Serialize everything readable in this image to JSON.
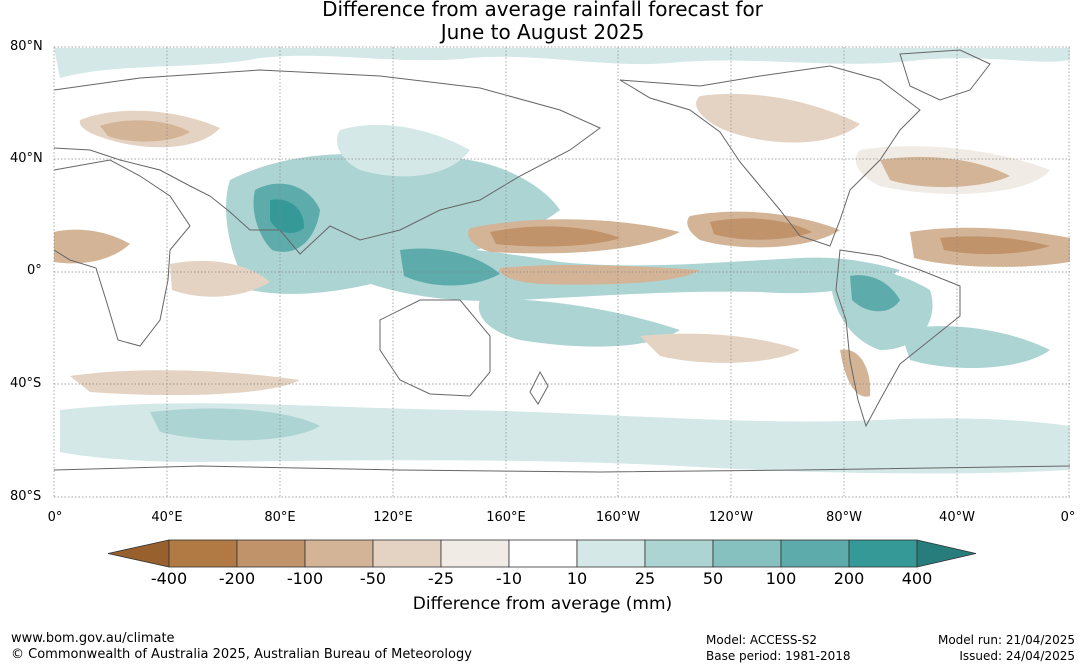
{
  "title_line1": "Difference from average rainfall forecast for",
  "title_line2": "June to August 2025",
  "lat_labels": [
    "80°N",
    "40°N",
    "0°",
    "40°S",
    "80°S"
  ],
  "lon_labels": [
    "0°",
    "40°E",
    "80°E",
    "120°E",
    "160°E",
    "160°W",
    "120°W",
    "80°W",
    "40°W",
    "0°"
  ],
  "colorbar": {
    "labels": [
      "-400",
      "-200",
      "-100",
      "-50",
      "-25",
      "-10",
      "10",
      "25",
      "50",
      "100",
      "200",
      "400"
    ],
    "colors": [
      "#97602c",
      "#b17a44",
      "#c0936a",
      "#d3b496",
      "#e4d3c3",
      "#f1ebe6",
      "#ffffff",
      "#d4e8e7",
      "#acd4d3",
      "#86c0bf",
      "#5dacab",
      "#359997",
      "#277d7b"
    ],
    "title": "Difference from average (mm)"
  },
  "colors": {
    "wet_light": "#d4e8e7",
    "wet_mid": "#acd4d3",
    "wet_strong": "#5dacab",
    "dry_light": "#e4d3c3",
    "dry_mid": "#c0936a",
    "dry_strong": "#b17a44",
    "coast": "#666666"
  },
  "footer": {
    "url": "www.bom.gov.au/climate",
    "copyright": "© Commonwealth of Australia 2025, Australian Bureau of Meteorology",
    "model": "Model: ACCESS-S2",
    "base_period": "Base period: 1981-2018",
    "model_run": "Model run: 21/04/2025",
    "issued": "Issued: 24/04/2025"
  }
}
